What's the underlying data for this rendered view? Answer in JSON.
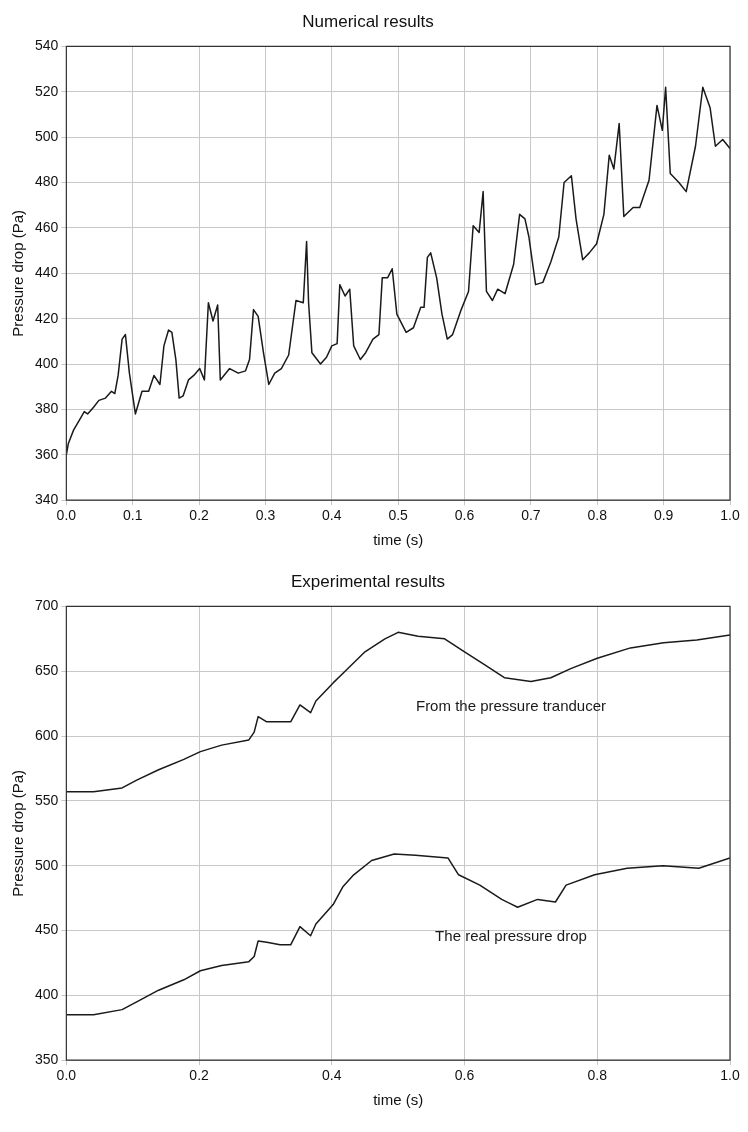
{
  "chart_data": [
    {
      "type": "line",
      "title": "Numerical results",
      "xlabel": "time (s)",
      "ylabel": "Pressure drop (Pa)",
      "xlim": [
        0,
        1
      ],
      "xticks": [
        {
          "value": 0,
          "label": "0.0"
        },
        {
          "value": 0.1,
          "label": "0.1"
        },
        {
          "value": 0.2,
          "label": "0.2"
        },
        {
          "value": 0.3,
          "label": "0.3"
        },
        {
          "value": 0.4,
          "label": "0.4"
        },
        {
          "value": 0.5,
          "label": "0.5"
        },
        {
          "value": 0.6,
          "label": "0.6"
        },
        {
          "value": 0.7,
          "label": "0.7"
        },
        {
          "value": 0.8,
          "label": "0.8"
        },
        {
          "value": 0.9,
          "label": "0.9"
        },
        {
          "value": 1,
          "label": "1.0"
        }
      ],
      "ylim": [
        340,
        540
      ],
      "yticks": [
        340,
        360,
        380,
        400,
        420,
        440,
        460,
        480,
        500,
        520,
        540
      ],
      "grid": true,
      "legend": false,
      "marker": "none",
      "line_style": "solid",
      "series": [
        {
          "color": "#1a1a1a",
          "x": [
            0,
            0.003,
            0.011,
            0.019,
            0.027,
            0.032,
            0.041,
            0.049,
            0.059,
            0.068,
            0.073,
            0.078,
            0.084,
            0.089,
            0.095,
            0.104,
            0.114,
            0.124,
            0.132,
            0.141,
            0.147,
            0.154,
            0.159,
            0.165,
            0.17,
            0.176,
            0.184,
            0.192,
            0.201,
            0.208,
            0.214,
            0.221,
            0.228,
            0.232,
            0.246,
            0.259,
            0.27,
            0.276,
            0.282,
            0.289,
            0.297,
            0.305,
            0.314,
            0.324,
            0.335,
            0.346,
            0.357,
            0.362,
            0.365,
            0.37,
            0.383,
            0.392,
            0.4,
            0.408,
            0.412,
            0.42,
            0.427,
            0.433,
            0.443,
            0.451,
            0.462,
            0.471,
            0.476,
            0.484,
            0.491,
            0.498,
            0.512,
            0.523,
            0.534,
            0.539,
            0.544,
            0.549,
            0.558,
            0.566,
            0.574,
            0.582,
            0.595,
            0.606,
            0.613,
            0.622,
            0.628,
            0.633,
            0.642,
            0.65,
            0.661,
            0.674,
            0.683,
            0.691,
            0.697,
            0.707,
            0.718,
            0.73,
            0.742,
            0.75,
            0.761,
            0.768,
            0.778,
            0.788,
            0.799,
            0.81,
            0.818,
            0.825,
            0.833,
            0.84,
            0.854,
            0.864,
            0.878,
            0.89,
            0.898,
            0.903,
            0.91,
            0.923,
            0.934,
            0.948,
            0.959,
            0.97,
            0.978,
            0.989,
            1
          ],
          "values": [
            360,
            365,
            371,
            375,
            379,
            378,
            381,
            384,
            385,
            388,
            387,
            395,
            411,
            413,
            396,
            378,
            388,
            388,
            395,
            391,
            408,
            415,
            414,
            402,
            385,
            386,
            393,
            395,
            398,
            393,
            427,
            419,
            426,
            393,
            398,
            396,
            397,
            402,
            424,
            421,
            405,
            391,
            396,
            398,
            404,
            428,
            427,
            454,
            427,
            405,
            400,
            403,
            408,
            409,
            435,
            430,
            433,
            408,
            402,
            405,
            411,
            413,
            438,
            438,
            442,
            422,
            414,
            416,
            425,
            425,
            447,
            449,
            438,
            422,
            411,
            413,
            424,
            432,
            461,
            458,
            476,
            432,
            428,
            433,
            431,
            444,
            466,
            464,
            456,
            435,
            436,
            445,
            456,
            480,
            483,
            464,
            446,
            449,
            453,
            466,
            492,
            486,
            506,
            465,
            469,
            469,
            481,
            514,
            503,
            522,
            484,
            480,
            476,
            496,
            522,
            513,
            496,
            499,
            495
          ]
        }
      ]
    },
    {
      "type": "line",
      "title": "Experimental results",
      "xlabel": "time (s)",
      "ylabel": "Pressure drop (Pa)",
      "xlim": [
        0,
        1
      ],
      "xticks": [
        {
          "value": 0,
          "label": "0.0"
        },
        {
          "value": 0.2,
          "label": "0.2"
        },
        {
          "value": 0.4,
          "label": "0.4"
        },
        {
          "value": 0.6,
          "label": "0.6"
        },
        {
          "value": 0.8,
          "label": "0.8"
        },
        {
          "value": 1,
          "label": "1.0"
        }
      ],
      "ylim": [
        350,
        700
      ],
      "yticks": [
        350,
        400,
        450,
        500,
        550,
        600,
        650,
        700
      ],
      "grid": true,
      "legend": false,
      "marker": "none",
      "line_style": "solid",
      "series": [
        {
          "name": "From the pressure tranducer",
          "color": "#1a1a1a",
          "x": [
            0,
            0.041,
            0.084,
            0.106,
            0.139,
            0.177,
            0.202,
            0.234,
            0.275,
            0.283,
            0.289,
            0.302,
            0.322,
            0.338,
            0.352,
            0.368,
            0.376,
            0.402,
            0.42,
            0.45,
            0.48,
            0.5,
            0.53,
            0.57,
            0.6,
            0.63,
            0.66,
            0.7,
            0.73,
            0.76,
            0.8,
            0.85,
            0.9,
            0.95,
            1
          ],
          "values": [
            557,
            557,
            560,
            566,
            574,
            582,
            588,
            593,
            597,
            603,
            615,
            611,
            611,
            611,
            624,
            618,
            627,
            641,
            650,
            665,
            675,
            680,
            677,
            675,
            665,
            655,
            645,
            642,
            645,
            652,
            660,
            668,
            672,
            674,
            678
          ]
        },
        {
          "name": "The real pressure drop",
          "color": "#1a1a1a",
          "x": [
            0,
            0.041,
            0.084,
            0.106,
            0.139,
            0.177,
            0.202,
            0.234,
            0.275,
            0.283,
            0.289,
            0.302,
            0.322,
            0.338,
            0.352,
            0.368,
            0.376,
            0.402,
            0.417,
            0.433,
            0.46,
            0.494,
            0.526,
            0.575,
            0.591,
            0.623,
            0.656,
            0.68,
            0.71,
            0.737,
            0.753,
            0.796,
            0.845,
            0.899,
            0.953,
            1
          ],
          "values": [
            385,
            385,
            389,
            395,
            404,
            412,
            419,
            423,
            426,
            430,
            442,
            441,
            439,
            439,
            453,
            446,
            455,
            470,
            484,
            493,
            504,
            509,
            508,
            506,
            493,
            485,
            474,
            468,
            474,
            472,
            485,
            493,
            498,
            500,
            498,
            506
          ]
        }
      ]
    }
  ]
}
